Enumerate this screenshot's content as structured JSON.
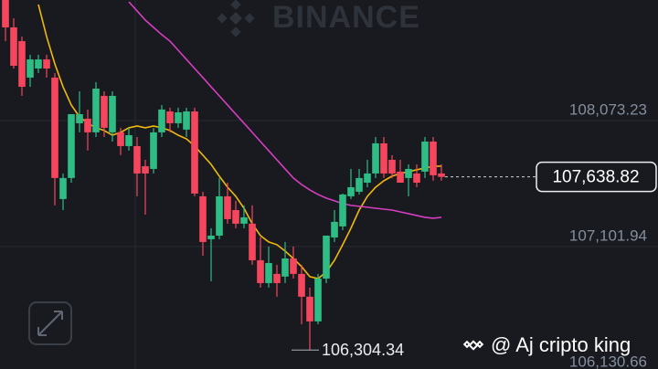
{
  "chart_data": {
    "type": "candlestick",
    "watermark": "BINANCE",
    "credit": "@ Aj cripto king",
    "up_color": "#2ebd85",
    "down_color": "#f6465d",
    "ylim": [
      106158,
      109002
    ],
    "yticks": [
      {
        "value": 108073.23,
        "label": "108,073.23"
      },
      {
        "value": 107101.94,
        "label": "107,101.94"
      },
      {
        "value": 106130.66,
        "label": "106,130.66"
      }
    ],
    "grid": true,
    "last_price": {
      "value": 107638.82,
      "label": "107,638.82"
    },
    "low_mark": {
      "value": 106304.34,
      "label": "106,304.34"
    },
    "open": [
      109002,
      108791,
      108685,
      108404,
      108474,
      108544,
      108404,
      107468,
      107630,
      108052,
      108087,
      107982,
      108263,
      107982,
      107982,
      107876,
      107876,
      107721,
      107700,
      107982,
      108143,
      108052,
      108003,
      108143,
      107489,
      107158,
      107186,
      107489,
      107383,
      107278,
      107278,
      106996,
      106820,
      106891,
      106870,
      107010,
      106891,
      106715,
      106525,
      106855,
      107172,
      107257,
      107489,
      107524,
      107594,
      107665,
      107897,
      107770,
      107679,
      107630,
      107665,
      107679,
      107911,
      107665
    ],
    "high": [
      109002,
      108861,
      108720,
      108580,
      108580,
      108580,
      108439,
      107665,
      108122,
      108298,
      108158,
      108369,
      108298,
      108298,
      108017,
      108017,
      107946,
      107770,
      108017,
      108193,
      108172,
      108172,
      108172,
      108172,
      107524,
      107243,
      107630,
      107594,
      107454,
      107419,
      107419,
      107172,
      107102,
      106961,
      107137,
      107102,
      106961,
      106785,
      106891,
      107186,
      107383,
      107510,
      107700,
      107700,
      107770,
      107946,
      107946,
      107806,
      107770,
      107735,
      107735,
      107946,
      107946,
      107735
    ],
    "low": [
      108685,
      108474,
      108263,
      108333,
      108439,
      108404,
      107419,
      107383,
      107594,
      107982,
      107841,
      107946,
      107946,
      107911,
      107806,
      107841,
      107489,
      107348,
      107665,
      107946,
      107982,
      108017,
      107946,
      107489,
      107031,
      106834,
      107158,
      107278,
      107243,
      107243,
      106961,
      106785,
      106785,
      106715,
      106820,
      106855,
      106503,
      106304.34,
      106503,
      106820,
      107137,
      107228,
      107468,
      107503,
      107559,
      107630,
      107630,
      107630,
      107594,
      107489,
      107559,
      107630,
      107609,
      107609
    ],
    "close": [
      108791,
      108495,
      108333,
      108544,
      108544,
      108474,
      107630,
      107630,
      108122,
      108122,
      107982,
      108319,
      108017,
      108263,
      107876,
      107960,
      107665,
      107665,
      107982,
      108158,
      108052,
      108136,
      108143,
      107510,
      107137,
      107186,
      107489,
      107313,
      107278,
      107327,
      106996,
      106820,
      106975,
      106820,
      107010,
      106891,
      106715,
      106525,
      106855,
      107186,
      107292,
      107503,
      107559,
      107630,
      107665,
      107897,
      107665,
      107665,
      107594,
      107700,
      107594,
      107911,
      107651,
      107638.82
    ],
    "series": [
      {
        "color": "#f0b90b",
        "values": [
          null,
          null,
          null,
          null,
          108967,
          108720,
          108509,
          108333,
          108193,
          108101,
          108052,
          108017,
          107996,
          107960,
          107982,
          108017,
          108031,
          108017,
          108031,
          108017,
          107996,
          107960,
          107932,
          107876,
          107806,
          107735,
          107644,
          107559,
          107489,
          107397,
          107278,
          107186,
          107137,
          107116,
          107067,
          107010,
          106947,
          106870,
          106855,
          106905,
          106996,
          107116,
          107243,
          107383,
          107489,
          107559,
          107609,
          107644,
          107665,
          107679,
          107693,
          107707,
          107721,
          107721
        ]
      },
      {
        "color": "#d63ec0",
        "values": [
          null,
          null,
          null,
          null,
          null,
          null,
          null,
          null,
          null,
          null,
          null,
          null,
          null,
          null,
          null,
          108988,
          108918,
          108847,
          108791,
          108735,
          108685,
          108615,
          108544,
          108474,
          108404,
          108333,
          108263,
          108193,
          108122,
          108052,
          107982,
          107911,
          107841,
          107770,
          107700,
          107630,
          107580,
          107538,
          107503,
          107475,
          107454,
          107433,
          107419,
          107412,
          107405,
          107397,
          107390,
          107383,
          107369,
          107355,
          107341,
          107327,
          107320,
          107327
        ]
      }
    ]
  }
}
